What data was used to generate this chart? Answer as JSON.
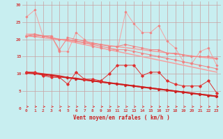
{
  "xlabel": "Vent moyen/en rafales ( km/h )",
  "bg_color": "#c8eef0",
  "grid_color": "#c8a0a0",
  "xlim": [
    -0.5,
    23.5
  ],
  "ylim": [
    0,
    31
  ],
  "yticks": [
    0,
    5,
    10,
    15,
    20,
    25,
    30
  ],
  "xticks": [
    0,
    1,
    2,
    3,
    4,
    5,
    6,
    7,
    8,
    9,
    10,
    11,
    12,
    13,
    14,
    15,
    16,
    17,
    18,
    19,
    20,
    21,
    22,
    23
  ],
  "x": [
    0,
    1,
    2,
    3,
    4,
    5,
    6,
    7,
    8,
    9,
    10,
    11,
    12,
    13,
    14,
    15,
    16,
    17,
    18,
    19,
    20,
    21,
    22,
    23
  ],
  "line_jagged_pink_y": [
    26.5,
    28.5,
    21,
    21,
    16.5,
    16.5,
    22,
    20,
    18,
    17.5,
    17,
    17,
    28,
    24.5,
    22,
    22,
    24,
    19.5,
    17.5,
    13.5,
    13,
    16.5,
    17.5,
    12.5
  ],
  "line_trend1_y": [
    21.5,
    21.5,
    21.0,
    20.5,
    20.0,
    19.5,
    19.0,
    18.5,
    18.0,
    17.5,
    17.0,
    16.5,
    16.0,
    15.5,
    15.0,
    14.5,
    14.0,
    13.5,
    13.0,
    12.5,
    12.0,
    11.5,
    11.0,
    10.5
  ],
  "line_trend2_y": [
    21.0,
    20.8,
    20.5,
    20.2,
    20.0,
    19.7,
    19.4,
    19.1,
    18.8,
    18.5,
    18.2,
    17.9,
    17.6,
    17.3,
    17.0,
    16.7,
    16.4,
    16.1,
    15.8,
    15.5,
    15.2,
    14.9,
    14.6,
    14.3
  ],
  "line_band_top_y": [
    21.0,
    21.5,
    21.0,
    21.0,
    17.0,
    20.5,
    20.0,
    19.5,
    19.0,
    18.5,
    18.0,
    18.0,
    18.5,
    18.0,
    17.5,
    17.0,
    17.0,
    16.0,
    16.0,
    15.5,
    15.0,
    15.0,
    15.0,
    14.5
  ],
  "line_band_bot_y": [
    21.0,
    21.0,
    21.0,
    20.5,
    20.0,
    20.0,
    19.5,
    19.0,
    18.5,
    18.0,
    17.5,
    17.0,
    17.0,
    16.5,
    16.0,
    15.5,
    15.0,
    14.5,
    14.0,
    13.5,
    13.0,
    12.5,
    12.0,
    11.5
  ],
  "line_jagged_red_y": [
    10.5,
    10.5,
    9.5,
    9.0,
    9.0,
    7.0,
    10.5,
    8.5,
    8.5,
    8.0,
    10.0,
    12.5,
    12.5,
    12.5,
    9.5,
    10.5,
    10.5,
    8.0,
    7.0,
    6.5,
    6.5,
    6.5,
    8.0,
    4.5
  ],
  "line_trend_red1_y": [
    10.5,
    10.2,
    9.9,
    9.6,
    9.3,
    9.0,
    8.7,
    8.4,
    8.1,
    7.8,
    7.5,
    7.2,
    6.9,
    6.6,
    6.3,
    6.0,
    5.7,
    5.4,
    5.1,
    4.8,
    4.5,
    4.2,
    3.9,
    3.6
  ],
  "line_trend_red2_y": [
    10.2,
    10.0,
    9.7,
    9.4,
    9.1,
    8.8,
    8.5,
    8.2,
    7.9,
    7.6,
    7.3,
    7.0,
    6.7,
    6.4,
    6.1,
    5.8,
    5.5,
    5.2,
    4.9,
    4.6,
    4.3,
    4.0,
    3.7,
    3.4
  ],
  "line_thick_red_y": [
    10.4,
    10.3,
    10.0,
    9.7,
    9.4,
    8.9,
    8.7,
    8.3,
    8.0,
    7.7,
    7.4,
    7.1,
    6.8,
    6.5,
    6.2,
    5.9,
    5.6,
    5.3,
    5.0,
    4.7,
    4.4,
    4.1,
    3.8,
    3.5
  ],
  "color_light_pink": "#f5a0a0",
  "color_pink": "#f08080",
  "color_red": "#e03030",
  "color_dark_red": "#cc2020",
  "color_tick": "#d04040",
  "color_xlabel": "#cc2020"
}
